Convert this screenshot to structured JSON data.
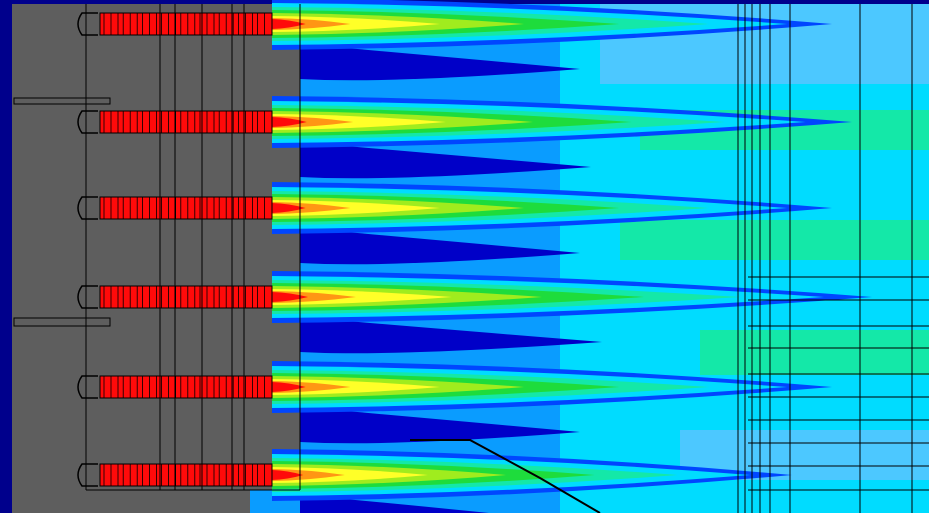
{
  "colors": {
    "frame_blue": "#00008c",
    "solid_gray": "#5e5e5e",
    "deep_blue": "#0000c8",
    "blue": "#0046ff",
    "light_blue": "#0a9cff",
    "cyan": "#00dcff",
    "pale_cyan": "#4cc8ff",
    "green_cyan": "#14e8a8",
    "green": "#1edc3c",
    "yellow_green": "#a0ec1e",
    "yellow": "#ffff28",
    "orange": "#ff9614",
    "red": "#ff0a0a",
    "grid_line": "#000000"
  },
  "figure": {
    "kind": "contour-field",
    "description_visible_text": "",
    "jet_count": 6,
    "nozzle_count": 6
  }
}
